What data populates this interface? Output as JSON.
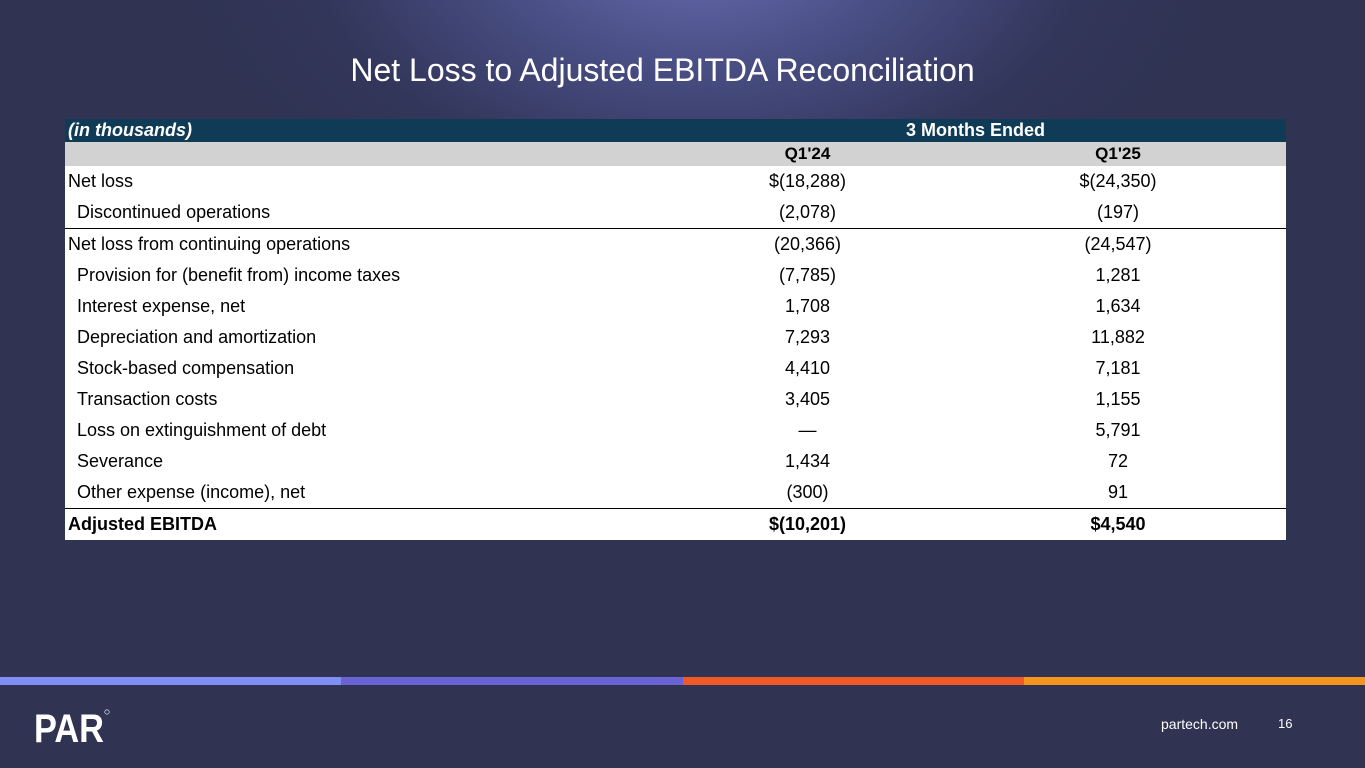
{
  "title": "Net Loss to Adjusted EBITDA Reconciliation",
  "table": {
    "unit_label": "(in thousands)",
    "period_header": "3 Months Ended",
    "columns": [
      "Q1'24",
      "Q1'25"
    ],
    "rows": [
      {
        "label": "Net loss",
        "q1_24": "$(18,288)",
        "q1_25": "$(24,350)"
      },
      {
        "label": "Discontinued operations",
        "q1_24": "(2,078)",
        "q1_25": "(197)"
      },
      {
        "label": "Net loss from continuing operations",
        "q1_24": "(20,366)",
        "q1_25": "(24,547)"
      },
      {
        "label": "Provision for (benefit from) income taxes",
        "q1_24": "(7,785)",
        "q1_25": "1,281"
      },
      {
        "label": "Interest expense, net",
        "q1_24": "1,708",
        "q1_25": "1,634"
      },
      {
        "label": "Depreciation and amortization",
        "q1_24": "7,293",
        "q1_25": "11,882"
      },
      {
        "label": "Stock-based compensation",
        "q1_24": "4,410",
        "q1_25": "7,181"
      },
      {
        "label": "Transaction costs",
        "q1_24": "3,405",
        "q1_25": "1,155"
      },
      {
        "label": "Loss on extinguishment of debt",
        "q1_24": "—",
        "q1_25": "5,791"
      },
      {
        "label": "Severance",
        "q1_24": "1,434",
        "q1_25": "72"
      },
      {
        "label": "Other expense (income), net",
        "q1_24": "(300)",
        "q1_25": "91"
      },
      {
        "label": "Adjusted EBITDA",
        "q1_24": "$(10,201)",
        "q1_25": "$4,540"
      }
    ]
  },
  "footer": {
    "logo_text": "PAR",
    "website": "partech.com",
    "page_number": "16",
    "stripe_colors": [
      "#7f8ff5",
      "#6a63d6",
      "#f05a28",
      "#f7941d"
    ]
  }
}
